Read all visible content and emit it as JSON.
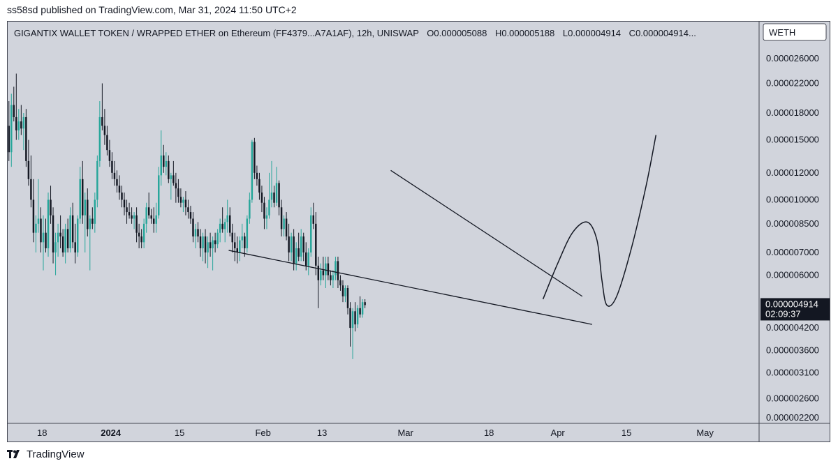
{
  "published": "ss58sd published on TradingView.com, Mar 31, 2024 11:50 UTC+2",
  "footer": {
    "brand": "TradingView",
    "logo_icon": "tradingview-logo-icon"
  },
  "header": {
    "symbol": "GIGANTIX WALLET TOKEN / WRAPPED ETHER on Ethereum (FF4379...A7A1AF), 12h, UNISWAP",
    "o_label": "O",
    "o_value": "0.000005088",
    "h_label": "H",
    "h_value": "0.000005188",
    "l_label": "L",
    "l_value": "0.000004914",
    "c_label": "C",
    "c_value": "0.000004914..."
  },
  "currency": "WETH",
  "last_price": {
    "value": "0.000004914",
    "countdown": "02:09:37"
  },
  "colors": {
    "background": "#d1d4dc",
    "up": "#26a69a",
    "down": "#131722",
    "line": "#131722",
    "price_label_bg": "#131722",
    "price_label_text": "#ffffff"
  },
  "chart_data": {
    "type": "candlestick",
    "interval": "12h",
    "y_scale": "log",
    "ylim": [
      2.2e-06,
      2.9e-05
    ],
    "y_ticks": [
      {
        "value": 2.6e-05,
        "label": "0.000026000"
      },
      {
        "value": 2.2e-05,
        "label": "0.000022000"
      },
      {
        "value": 1.8e-05,
        "label": "0.000018000"
      },
      {
        "value": 1.5e-05,
        "label": "0.000015000"
      },
      {
        "value": 1.2e-05,
        "label": "0.000012000"
      },
      {
        "value": 1e-05,
        "label": "0.000010000"
      },
      {
        "value": 8.5e-06,
        "label": "0.000008500"
      },
      {
        "value": 7e-06,
        "label": "0.000007000"
      },
      {
        "value": 6e-06,
        "label": "0.000006000"
      },
      {
        "value": 4.2e-06,
        "label": "0.000004200"
      },
      {
        "value": 3.6e-06,
        "label": "0.000003600"
      },
      {
        "value": 3.1e-06,
        "label": "0.000003100"
      },
      {
        "value": 2.6e-06,
        "label": "0.000002600"
      },
      {
        "value": 2.2e-06,
        "label": "0.000002200"
      }
    ],
    "x_range": [
      "2023-12-11",
      "2024-05-12"
    ],
    "x_ticks": [
      {
        "date": "2023-12-18",
        "label": "18",
        "bold": false
      },
      {
        "date": "2024-01-01",
        "label": "2024",
        "bold": true
      },
      {
        "date": "2024-01-15",
        "label": "15",
        "bold": false
      },
      {
        "date": "2024-02-01",
        "label": "Feb",
        "bold": false
      },
      {
        "date": "2024-02-13",
        "label": "13",
        "bold": false
      },
      {
        "date": "2024-03-01",
        "label": "Mar",
        "bold": false
      },
      {
        "date": "2024-03-18",
        "label": "18",
        "bold": false
      },
      {
        "date": "2024-04-01",
        "label": "Apr",
        "bold": false
      },
      {
        "date": "2024-04-15",
        "label": "15",
        "bold": false
      },
      {
        "date": "2024-05-01",
        "label": "May",
        "bold": false
      }
    ],
    "first_candle": "2023-12-11T00:00",
    "candle_hours": 12,
    "candles": [
      [
        1.65e-05,
        1.95e-05,
        1.3e-05,
        1.38e-05
      ],
      [
        1.38e-05,
        2.05e-05,
        1.25e-05,
        1.9e-05
      ],
      [
        1.9e-05,
        2.15e-05,
        1.7e-05,
        1.75e-05
      ],
      [
        1.75e-05,
        2.35e-05,
        1.5e-05,
        1.6e-05
      ],
      [
        1.6e-05,
        1.85e-05,
        1.5e-05,
        1.7e-05
      ],
      [
        1.7e-05,
        1.9e-05,
        1.55e-05,
        1.62e-05
      ],
      [
        1.62e-05,
        1.8e-05,
        1.4e-05,
        1.75e-05
      ],
      [
        1.75e-05,
        1.85e-05,
        1.25e-05,
        1.3e-05
      ],
      [
        1.3e-05,
        1.5e-05,
        1.1e-05,
        1.15e-05
      ],
      [
        1.15e-05,
        1.35e-05,
        9.5e-06,
        1e-05
      ],
      [
        1e-05,
        1.15e-05,
        7.5e-06,
        8e-06
      ],
      [
        8e-06,
        9e-06,
        7e-06,
        8.5e-06
      ],
      [
        8.5e-06,
        1.15e-05,
        8e-06,
        8.8e-06
      ],
      [
        8.8e-06,
        9.5e-06,
        7e-06,
        7.5e-06
      ],
      [
        7.5e-06,
        9e-06,
        6.2e-06,
        8e-06
      ],
      [
        8e-06,
        8.8e-06,
        7e-06,
        7.2e-06
      ],
      [
        7.2e-06,
        1.05e-05,
        6.8e-06,
        1e-05
      ],
      [
        1e-05,
        1.1e-05,
        8.5e-06,
        9e-06
      ],
      [
        9e-06,
        9.5e-06,
        6.5e-06,
        7e-06
      ],
      [
        7e-06,
        8e-06,
        6e-06,
        7.5e-06
      ],
      [
        7.5e-06,
        8.5e-06,
        6.8e-06,
        8e-06
      ],
      [
        8e-06,
        9e-06,
        7.2e-06,
        7.8e-06
      ],
      [
        7.8e-06,
        8.2e-06,
        6.8e-06,
        7e-06
      ],
      [
        7e-06,
        8.5e-06,
        6.5e-06,
        8.2e-06
      ],
      [
        8.2e-06,
        8.8e-06,
        7e-06,
        7.2e-06
      ],
      [
        7.2e-06,
        9.5e-06,
        7e-06,
        9e-06
      ],
      [
        9e-06,
        9.8e-06,
        7.2e-06,
        7.5e-06
      ],
      [
        7.5e-06,
        8.5e-06,
        6.5e-06,
        7e-06
      ],
      [
        7e-06,
        9e-06,
        6.8e-06,
        8.8e-06
      ],
      [
        8.8e-06,
        1.25e-05,
        8.5e-06,
        1.15e-05
      ],
      [
        1.15e-05,
        1.3e-05,
        8.5e-06,
        9e-06
      ],
      [
        9e-06,
        1.05e-05,
        7e-06,
        1e-05
      ],
      [
        1e-05,
        1.08e-05,
        7.8e-06,
        8.2e-06
      ],
      [
        8.2e-06,
        9e-06,
        6.2e-06,
        8.8e-06
      ],
      [
        8.8e-06,
        9.5e-06,
        8.2e-06,
        8.5e-06
      ],
      [
        8.5e-06,
        1.05e-05,
        8e-06,
        1e-05
      ],
      [
        1e-05,
        1.35e-05,
        9.5e-06,
        1.3e-05
      ],
      [
        1.3e-05,
        1.95e-05,
        1.25e-05,
        1.75e-05
      ],
      [
        1.75e-05,
        2.2e-05,
        1.6e-05,
        1.65e-05
      ],
      [
        1.65e-05,
        1.85e-05,
        1.45e-05,
        1.55e-05
      ],
      [
        1.55e-05,
        1.65e-05,
        1.35e-05,
        1.4e-05
      ],
      [
        1.4e-05,
        1.5e-05,
        1.25e-05,
        1.3e-05
      ],
      [
        1.3e-05,
        1.38e-05,
        1.15e-05,
        1.2e-05
      ],
      [
        1.2e-05,
        1.3e-05,
        1.1e-05,
        1.15e-05
      ],
      [
        1.15e-05,
        1.22e-05,
        1.05e-05,
        1.1e-05
      ],
      [
        1.1e-05,
        1.18e-05,
        1e-05,
        1.05e-05
      ],
      [
        1.05e-05,
        1.1e-05,
        9.5e-06,
        1e-05
      ],
      [
        1e-05,
        1.05e-05,
        9e-06,
        9.5e-06
      ],
      [
        9.5e-06,
        1e-05,
        8.5e-06,
        9.2e-06
      ],
      [
        9.2e-06,
        9.8e-06,
        8.8e-06,
        9e-06
      ],
      [
        9e-06,
        9.5e-06,
        8.5e-06,
        8.8e-06
      ],
      [
        8.8e-06,
        9.2e-06,
        8.2e-06,
        9e-06
      ],
      [
        9e-06,
        9.5e-06,
        7.5e-06,
        8e-06
      ],
      [
        8e-06,
        8.5e-06,
        7.2e-06,
        7.8e-06
      ],
      [
        7.8e-06,
        8.2e-06,
        7.2e-06,
        7.5e-06
      ],
      [
        7.5e-06,
        8.8e-06,
        7.2e-06,
        8.5e-06
      ],
      [
        8.5e-06,
        9.8e-06,
        8e-06,
        9.5e-06
      ],
      [
        9.5e-06,
        1.05e-05,
        8.8e-06,
        9e-06
      ],
      [
        9e-06,
        9.4e-06,
        8.5e-06,
        8.8e-06
      ],
      [
        8.8e-06,
        9.5e-06,
        8e-06,
        8.5e-06
      ],
      [
        8.5e-06,
        9.8e-06,
        8e-06,
        9e-06
      ],
      [
        9e-06,
        1.25e-05,
        8.8e-06,
        1.18e-05
      ],
      [
        1.18e-05,
        1.6e-05,
        1.1e-05,
        1.35e-05
      ],
      [
        1.35e-05,
        1.45e-05,
        1.2e-05,
        1.25e-05
      ],
      [
        1.25e-05,
        1.38e-05,
        1.18e-05,
        1.3e-05
      ],
      [
        1.3e-05,
        1.35e-05,
        1.12e-05,
        1.15e-05
      ],
      [
        1.15e-05,
        1.2e-05,
        1e-05,
        1.18e-05
      ],
      [
        1.18e-05,
        1.3e-05,
        1.1e-05,
        1.12e-05
      ],
      [
        1.12e-05,
        1.2e-05,
        9.8e-06,
        1.08e-05
      ],
      [
        1.08e-05,
        1.15e-05,
        9.8e-06,
        1.02e-05
      ],
      [
        1.02e-05,
        1.08e-05,
        9.5e-06,
        9.8e-06
      ],
      [
        9.8e-06,
        1.02e-05,
        9.2e-06,
        1e-05
      ],
      [
        1e-05,
        1.06e-05,
        9e-06,
        9.5e-06
      ],
      [
        9.5e-06,
        1e-05,
        8.8e-06,
        9.2e-06
      ],
      [
        9.2e-06,
        9.6e-06,
        8.5e-06,
        8.8e-06
      ],
      [
        8.8e-06,
        9.2e-06,
        7.5e-06,
        7.8e-06
      ],
      [
        7.8e-06,
        8.5e-06,
        7.2e-06,
        8.2e-06
      ],
      [
        8.2e-06,
        8.6e-06,
        7.5e-06,
        7.8e-06
      ],
      [
        7.8e-06,
        8.2e-06,
        6.8e-06,
        7.2e-06
      ],
      [
        7.2e-06,
        8e-06,
        6.6e-06,
        7.8e-06
      ],
      [
        7.8e-06,
        8.2e-06,
        6.5e-06,
        7e-06
      ],
      [
        7e-06,
        7.8e-06,
        6.3e-06,
        7.5e-06
      ],
      [
        7.5e-06,
        8e-06,
        6.8e-06,
        7.2e-06
      ],
      [
        7.2e-06,
        7.8e-06,
        6.2e-06,
        7.6e-06
      ],
      [
        7.6e-06,
        8e-06,
        7e-06,
        7.4e-06
      ],
      [
        7.4e-06,
        8.2e-06,
        7.2e-06,
        8e-06
      ],
      [
        8e-06,
        8.8e-06,
        7.5e-06,
        8.5e-06
      ],
      [
        8.5e-06,
        9.5e-06,
        8e-06,
        8.2e-06
      ],
      [
        8.2e-06,
        8.8e-06,
        7.5e-06,
        8.6e-06
      ],
      [
        8.6e-06,
        1e-05,
        8e-06,
        9e-06
      ],
      [
        9e-06,
        9.5e-06,
        7.8e-06,
        8e-06
      ],
      [
        8e-06,
        8.5e-06,
        7e-06,
        7.5e-06
      ],
      [
        7.5e-06,
        8e-06,
        6.6e-06,
        7.2e-06
      ],
      [
        7.2e-06,
        7.8e-06,
        6.5e-06,
        7e-06
      ],
      [
        7e-06,
        7.8e-06,
        6.6e-06,
        7.6e-06
      ],
      [
        7.6e-06,
        8.5e-06,
        7.2e-06,
        7.8e-06
      ],
      [
        7.8e-06,
        8e-06,
        6.8e-06,
        7.2e-06
      ],
      [
        7.2e-06,
        9e-06,
        7e-06,
        8.8e-06
      ],
      [
        8.8e-06,
        1.05e-05,
        8.5e-06,
        1e-05
      ],
      [
        1e-05,
        1.5e-05,
        9.8e-06,
        1.48e-05
      ],
      [
        1.48e-05,
        1.52e-05,
        1.15e-05,
        1.2e-05
      ],
      [
        1.2e-05,
        1.26e-05,
        1.1e-05,
        1.15e-05
      ],
      [
        1.15e-05,
        1.2e-05,
        1e-05,
        1.05e-05
      ],
      [
        1.05e-05,
        1.1e-05,
        9.2e-06,
        9.8e-06
      ],
      [
        9.8e-06,
        1.02e-05,
        8.2e-06,
        8.8e-06
      ],
      [
        8.8e-06,
        9.5e-06,
        8.2e-06,
        9e-06
      ],
      [
        9e-06,
        1.2e-05,
        8.8e-06,
        1e-05
      ],
      [
        1e-05,
        1.3e-05,
        9.5e-06,
        1.05e-05
      ],
      [
        1.05e-05,
        1.1e-05,
        9.5e-06,
        9.8e-06
      ],
      [
        9.8e-06,
        1.25e-05,
        9.6e-06,
        1.12e-05
      ],
      [
        1.12e-05,
        1.14e-05,
        9e-06,
        9.5e-06
      ],
      [
        9.5e-06,
        1e-05,
        7.8e-06,
        8.2e-06
      ],
      [
        8.2e-06,
        9e-06,
        7.8e-06,
        8.8e-06
      ],
      [
        8.8e-06,
        9.2e-06,
        7.6e-06,
        7.8e-06
      ],
      [
        7.8e-06,
        8.5e-06,
        6.6e-06,
        7e-06
      ],
      [
        7e-06,
        8e-06,
        6.6e-06,
        7.8e-06
      ],
      [
        7.8e-06,
        8.2e-06,
        6.2e-06,
        6.5e-06
      ],
      [
        6.5e-06,
        7.5e-06,
        6.2e-06,
        7.2e-06
      ],
      [
        7.2e-06,
        8e-06,
        6.6e-06,
        6.8e-06
      ],
      [
        6.8e-06,
        8.2e-06,
        6.6e-06,
        7.8e-06
      ],
      [
        7.8e-06,
        8e-06,
        6.6e-06,
        7e-06
      ],
      [
        7e-06,
        7.5e-06,
        6.2e-06,
        6.4e-06
      ],
      [
        6.4e-06,
        7.2e-06,
        6e-06,
        7e-06
      ],
      [
        7e-06,
        9.5e-06,
        6.8e-06,
        9e-06
      ],
      [
        9e-06,
        9.8e-06,
        8.2e-06,
        8.5e-06
      ],
      [
        8.5e-06,
        9.2e-06,
        6e-06,
        6.4e-06
      ],
      [
        6.4e-06,
        6.8e-06,
        4.8e-06,
        5.8e-06
      ],
      [
        5.8e-06,
        6.5e-06,
        5.6e-06,
        6.2e-06
      ],
      [
        6.2e-06,
        6.8e-06,
        5.8e-06,
        6e-06
      ],
      [
        6e-06,
        6.8e-06,
        5.5e-06,
        6.5e-06
      ],
      [
        6.5e-06,
        6.8e-06,
        5.8e-06,
        6e-06
      ],
      [
        6e-06,
        6.2e-06,
        5.6e-06,
        5.8e-06
      ],
      [
        5.8e-06,
        6.2e-06,
        5.5e-06,
        6e-06
      ],
      [
        6e-06,
        6.8e-06,
        5.8e-06,
        6.6e-06
      ],
      [
        6.6e-06,
        6.8e-06,
        5.5e-06,
        5.8e-06
      ],
      [
        5.8e-06,
        6e-06,
        5.4e-06,
        5.6e-06
      ],
      [
        5.6e-06,
        5.8e-06,
        5e-06,
        5.2e-06
      ],
      [
        5.2e-06,
        5.6e-06,
        5e-06,
        5.5e-06
      ],
      [
        5.5e-06,
        5.6e-06,
        4.6e-06,
        4.8e-06
      ],
      [
        4.8e-06,
        5e-06,
        3.7e-06,
        4.2e-06
      ],
      [
        4.2e-06,
        4.8e-06,
        3.4e-06,
        4.7e-06
      ],
      [
        4.7e-06,
        5e-06,
        4.1e-06,
        4.3e-06
      ],
      [
        4.3e-06,
        4.9e-06,
        4.2e-06,
        4.8e-06
      ],
      [
        4.8e-06,
        5.2e-06,
        4.5e-06,
        4.6e-06
      ],
      [
        4.6e-06,
        5.1e-06,
        4.5e-06,
        5e-06
      ],
      [
        5e-06,
        5.1e-06,
        4.8e-06,
        4.9e-06
      ]
    ],
    "trendlines": [
      {
        "name": "lower-trendline",
        "points": [
          [
            "2024-01-25",
            7.1e-06
          ],
          [
            "2024-04-08",
            4.3e-06
          ]
        ]
      },
      {
        "name": "upper-trendline",
        "points": [
          [
            "2024-02-27",
            1.22e-05
          ],
          [
            "2024-04-06",
            5.2e-06
          ]
        ]
      }
    ],
    "projection": [
      [
        "2024-03-29",
        5.1e-06
      ],
      [
        "2024-04-01",
        6.5e-06
      ],
      [
        "2024-04-04",
        8e-06
      ],
      [
        "2024-04-07",
        8.6e-06
      ],
      [
        "2024-04-09",
        7.6e-06
      ],
      [
        "2024-04-10",
        5.8e-06
      ],
      [
        "2024-04-11",
        4.9e-06
      ],
      [
        "2024-04-13",
        5.2e-06
      ],
      [
        "2024-04-16",
        7.2e-06
      ],
      [
        "2024-04-19",
        1.1e-05
      ],
      [
        "2024-04-21",
        1.55e-05
      ]
    ]
  }
}
